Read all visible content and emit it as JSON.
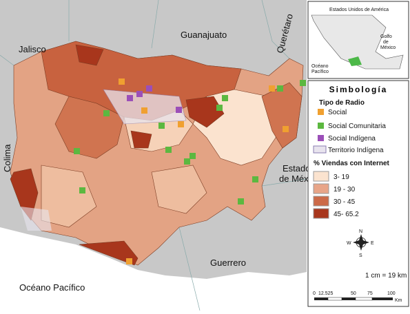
{
  "map": {
    "neighbors": {
      "jalisco": "Jalisco",
      "guanajuato": "Guanajuato",
      "queretaro": "Querétaro",
      "colima": "Colima",
      "mexico": [
        "Estado",
        "de México"
      ],
      "guerrero": "Guerrero",
      "ocean": "Océano Pacífico"
    },
    "inset": {
      "usa": "Estados Unidos de América",
      "gulf": [
        "Golfo",
        "de",
        "México"
      ],
      "pacific": [
        "Océano",
        "Pacífico"
      ]
    },
    "legend": {
      "title": "Simbología",
      "radio_title": "Tipo de Radio",
      "radio_types": [
        "Social",
        "Social Comunitaria",
        "Social Indígena",
        "Territorio Indígena"
      ],
      "internet_title": "% Viendas con Internet",
      "classes": [
        "3- 19",
        "19 - 30",
        "30 - 45",
        "45- 65.2"
      ]
    },
    "compass": {
      "n": "N",
      "s": "S",
      "e": "E",
      "w": "W"
    },
    "scale": {
      "ratio": "1 cm = 19 km",
      "ticks": [
        "0",
        "12.525",
        "50",
        "75",
        "100"
      ],
      "unit": "Km"
    }
  }
}
